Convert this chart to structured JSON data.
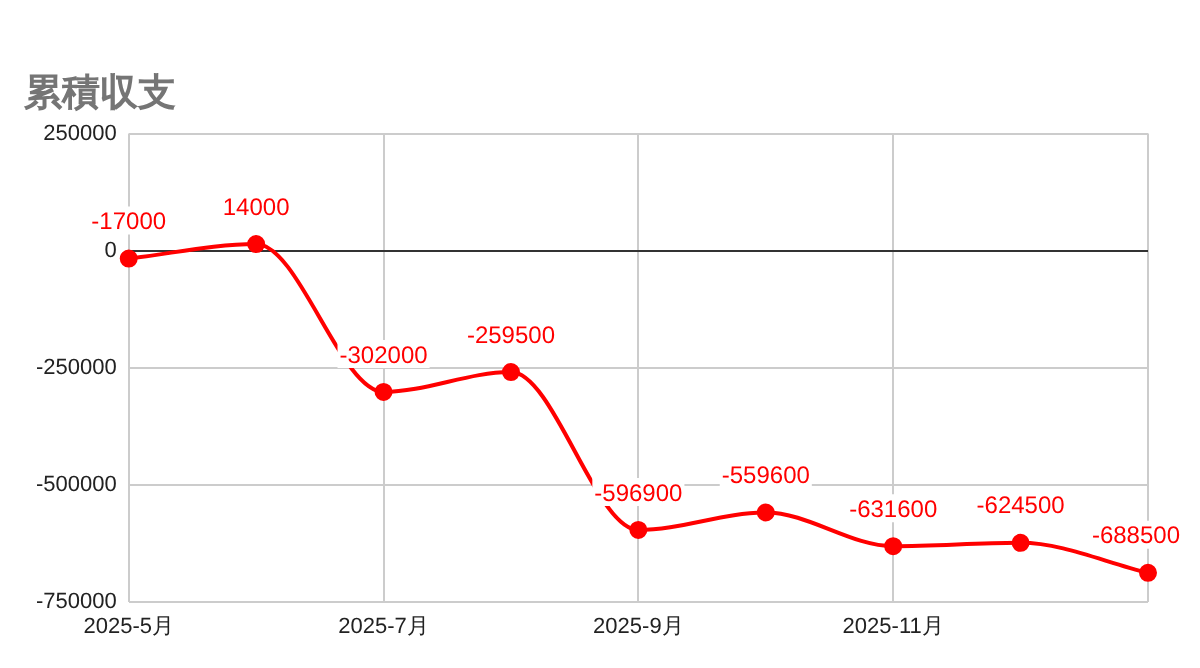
{
  "chart_data": {
    "type": "line",
    "title": "累積収支",
    "categories": [
      "2025-5月",
      null,
      "2025-7月",
      null,
      "2025-9月",
      null,
      "2025-11月",
      null,
      null
    ],
    "series": [
      {
        "color": "#ff0000",
        "values": [
          -17000,
          14000,
          -302000,
          -259500,
          -596900,
          -559600,
          -631600,
          -624500,
          -688500
        ]
      }
    ],
    "ylim": [
      -750000,
      250000
    ],
    "yticks": [
      -750000,
      -500000,
      -250000,
      0,
      250000
    ],
    "grid": true,
    "legend": false,
    "marker": "circle",
    "line_style": "solid",
    "data_labels": true
  }
}
